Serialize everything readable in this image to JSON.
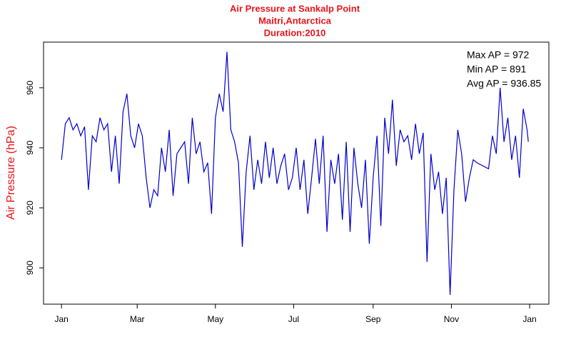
{
  "chart_data": {
    "type": "line",
    "title": [
      "Air Pressure at Sankalp Point",
      "Maitri,Antarctica",
      "Duration:2010"
    ],
    "title_color": "#e8141a",
    "y_label": "Air Pressure (hPa)",
    "annotations": [
      "Max AP = 972",
      "Min AP = 891",
      "Avg AP = 936.85"
    ],
    "x": [
      0,
      3,
      6,
      9,
      12,
      15,
      18,
      21,
      24,
      27,
      30,
      33,
      36,
      39,
      42,
      45,
      48,
      51,
      54,
      57,
      60,
      63,
      66,
      69,
      72,
      75,
      78,
      81,
      84,
      87,
      90,
      93,
      96,
      99,
      102,
      105,
      108,
      111,
      114,
      117,
      120,
      123,
      126,
      129,
      132,
      135,
      138,
      141,
      144,
      147,
      150,
      153,
      156,
      159,
      162,
      165,
      168,
      171,
      174,
      177,
      180,
      183,
      186,
      189,
      192,
      195,
      198,
      201,
      204,
      207,
      210,
      213,
      216,
      219,
      222,
      225,
      228,
      231,
      234,
      237,
      240,
      243,
      246,
      249,
      252,
      255,
      258,
      261,
      264,
      267,
      270,
      273,
      276,
      279,
      282,
      285,
      288,
      291,
      294,
      297,
      300,
      303,
      306,
      309,
      312,
      315,
      318,
      321,
      324,
      333,
      336,
      339,
      342,
      345,
      348,
      351,
      354,
      357,
      360,
      363,
      364
    ],
    "series": [
      {
        "name": "Air Pressure",
        "color": "#0000cc",
        "values": [
          936,
          948,
          950,
          946,
          948,
          944,
          947,
          926,
          944,
          942,
          950,
          946,
          948,
          932,
          944,
          928,
          952,
          958,
          944,
          940,
          948,
          944,
          930,
          920,
          926,
          924,
          940,
          932,
          946,
          924,
          938,
          940,
          942,
          928,
          950,
          938,
          942,
          932,
          935,
          918,
          950,
          958,
          952,
          972,
          946,
          942,
          935,
          907,
          932,
          944,
          926,
          936,
          928,
          942,
          930,
          940,
          928,
          934,
          938,
          926,
          930,
          940,
          926,
          936,
          918,
          930,
          943,
          928,
          944,
          912,
          936,
          928,
          938,
          916,
          942,
          912,
          940,
          928,
          920,
          936,
          908,
          930,
          944,
          914,
          950,
          938,
          956,
          934,
          946,
          942,
          944,
          936,
          948,
          938,
          945,
          902,
          938,
          926,
          932,
          918,
          930,
          891,
          926,
          946,
          938,
          922,
          930,
          936,
          935,
          933,
          944,
          938,
          960,
          942,
          950,
          936,
          944,
          930,
          953,
          946,
          942
        ]
      }
    ],
    "xlim": [
      -14,
      380
    ],
    "xticks": [
      {
        "value": 0,
        "label": "Jan"
      },
      {
        "value": 59,
        "label": "Mar"
      },
      {
        "value": 120,
        "label": "May"
      },
      {
        "value": 181,
        "label": "Jul"
      },
      {
        "value": 243,
        "label": "Sep"
      },
      {
        "value": 304,
        "label": "Nov"
      },
      {
        "value": 365,
        "label": "Jan"
      }
    ],
    "ylim": [
      887.9,
      975.2
    ],
    "yticks": [
      900,
      920,
      940,
      960
    ]
  }
}
